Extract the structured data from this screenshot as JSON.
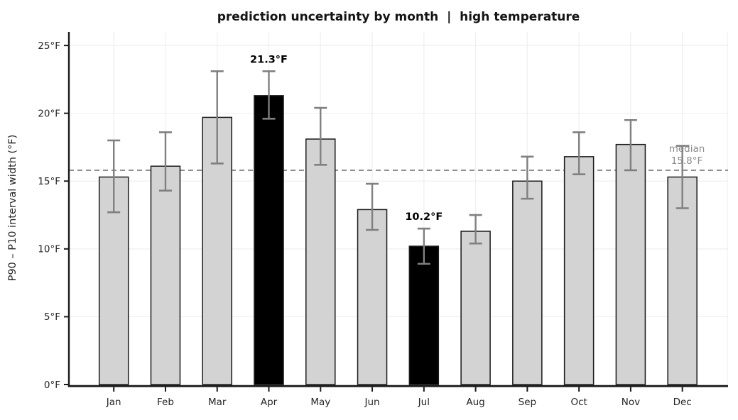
{
  "chart_data": {
    "type": "bar",
    "title": "prediction uncertainty by month  |  high temperature",
    "xlabel": "",
    "ylabel": "P90 – P10 interval width (°F)",
    "categories": [
      "Jan",
      "Feb",
      "Mar",
      "Apr",
      "May",
      "Jun",
      "Jul",
      "Aug",
      "Sep",
      "Oct",
      "Nov",
      "Dec"
    ],
    "series": [
      {
        "name": "P90-P10 interval width",
        "values": [
          15.3,
          16.1,
          19.7,
          21.3,
          18.1,
          12.9,
          10.2,
          11.3,
          15.0,
          16.8,
          17.7,
          15.3
        ],
        "error_low": [
          12.7,
          14.3,
          16.3,
          19.6,
          16.2,
          11.4,
          8.9,
          10.4,
          13.7,
          15.5,
          15.8,
          13.0
        ],
        "error_high": [
          18.0,
          18.6,
          23.1,
          23.1,
          20.4,
          14.8,
          11.5,
          12.5,
          16.8,
          18.6,
          19.5,
          17.6
        ]
      }
    ],
    "highlighted": [
      {
        "category": "Apr",
        "label": "21.3°F"
      },
      {
        "category": "Jul",
        "label": "10.2°F"
      }
    ],
    "median_line": {
      "value": 15.8,
      "label_line1": "median",
      "label_line2": "15.8°F"
    },
    "ylim": [
      0,
      26
    ],
    "yticks": [
      0,
      5,
      10,
      15,
      20,
      25
    ],
    "ytick_labels": [
      "0°F",
      "5°F",
      "10°F",
      "15°F",
      "20°F",
      "25°F"
    ],
    "grid": true,
    "legend": "none",
    "colors": {
      "bar_fill": "#d3d3d3",
      "bar_highlight": "#000000",
      "bar_edge": "#1a1a1a",
      "error_bar": "#808080",
      "median_line": "#808080",
      "median_text": "#8c8c8c",
      "grid": "#efefef",
      "axis": "#1a1a1a",
      "tick_label": "#262626"
    }
  }
}
